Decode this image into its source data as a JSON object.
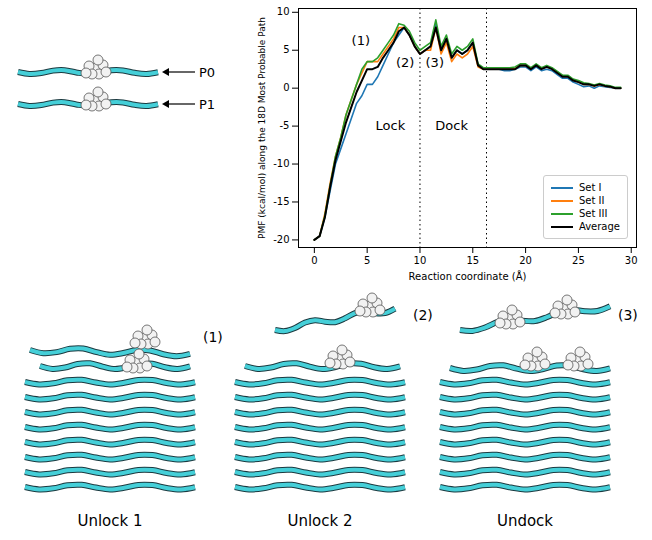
{
  "chart_data": {
    "type": "line",
    "x_label": "Reaction coordinate (Å)",
    "y_label": "PMF (kcal/mol) along the 18D Most Probable Path",
    "xlim": [
      -1.5,
      30.5
    ],
    "ylim": [
      -21,
      10.5
    ],
    "xticks": [
      0,
      5,
      10,
      15,
      20,
      25,
      30
    ],
    "yticks": [
      -20,
      -15,
      -10,
      -5,
      0,
      5,
      10
    ],
    "legend": "lower right",
    "vlines": [
      10,
      16.3
    ],
    "annotations": [
      {
        "text": "(1)",
        "x": 4.4,
        "y": 6.2
      },
      {
        "text": "(2)",
        "x": 8.6,
        "y": 3.3
      },
      {
        "text": "(3)",
        "x": 11.4,
        "y": 3.3
      },
      {
        "text": "Lock",
        "x": 7.2,
        "y": -5
      },
      {
        "text": "Dock",
        "x": 13,
        "y": -5
      }
    ],
    "x": [
      0,
      0.5,
      1,
      1.5,
      2,
      2.5,
      3,
      3.5,
      4,
      4.5,
      5,
      5.5,
      6,
      6.5,
      7,
      7.5,
      8,
      8.5,
      9,
      9.5,
      10,
      10.5,
      11,
      11.5,
      12,
      12.5,
      13,
      13.5,
      14,
      14.5,
      15,
      15.5,
      16,
      16.5,
      17,
      17.5,
      18,
      18.5,
      19,
      19.5,
      20,
      20.5,
      21,
      21.5,
      22,
      22.5,
      23,
      23.5,
      24,
      24.5,
      25,
      25.5,
      26,
      26.5,
      27,
      27.5,
      28,
      28.5,
      29
    ],
    "series": [
      {
        "name": "Set I",
        "color": "#1f77b4",
        "values": [
          -20,
          -19.5,
          -17,
          -13.5,
          -10,
          -8,
          -6,
          -4,
          -2,
          -1,
          0.5,
          0.5,
          1.5,
          3,
          4.5,
          6,
          7,
          8,
          7,
          5.5,
          4.5,
          5,
          5.5,
          8.5,
          5,
          6.5,
          4,
          5,
          4.5,
          5,
          6,
          3,
          2.5,
          2.5,
          2.5,
          2.5,
          2.3,
          2.3,
          2.5,
          2.8,
          2.8,
          2.3,
          2.8,
          2.3,
          2.5,
          2.3,
          1.8,
          1.3,
          1.3,
          0.8,
          0.5,
          0.2,
          0.3,
          0,
          0.3,
          0.2,
          0.1,
          0,
          0
        ]
      },
      {
        "name": "Set II",
        "color": "#ff7f0e",
        "values": [
          -20,
          -19.5,
          -16.5,
          -12.5,
          -9,
          -6.5,
          -3.5,
          -1.5,
          0.5,
          2,
          3.5,
          3.5,
          3.5,
          4.5,
          5.5,
          6.5,
          8,
          8,
          7,
          5.5,
          4.5,
          5,
          5,
          8,
          4.5,
          6,
          3.5,
          4.5,
          4,
          4.5,
          5.5,
          2.8,
          2.5,
          2.5,
          2.5,
          2.5,
          2.5,
          2.5,
          2.6,
          3,
          3,
          2.6,
          3,
          2.6,
          2.8,
          2.6,
          2.1,
          1.6,
          1.6,
          1.1,
          0.8,
          0.5,
          0.5,
          0.3,
          0.5,
          0.3,
          0.2,
          0,
          0
        ]
      },
      {
        "name": "Set III",
        "color": "#2ca02c",
        "values": [
          -20,
          -19.5,
          -16.8,
          -12.8,
          -9,
          -6.5,
          -3.5,
          -1.5,
          0.5,
          2.5,
          3.5,
          3.5,
          4,
          5,
          6,
          7,
          8.5,
          8.3,
          7.5,
          6,
          5,
          5.5,
          6,
          9,
          5.5,
          7,
          4.5,
          5.5,
          5,
          5.5,
          6.5,
          3.2,
          2.7,
          2.7,
          2.7,
          2.7,
          2.7,
          2.7,
          2.8,
          3.2,
          3.2,
          2.7,
          3.2,
          2.7,
          3,
          2.7,
          2.2,
          1.7,
          1.7,
          1.2,
          1,
          0.7,
          0.6,
          0.4,
          0.6,
          0.4,
          0.3,
          0.1,
          0.1
        ]
      },
      {
        "name": "Average",
        "color": "#000000",
        "values": [
          -20,
          -19.5,
          -17,
          -13,
          -9.5,
          -7,
          -4.5,
          -2.5,
          -0.5,
          1,
          2.5,
          2.5,
          2.8,
          4,
          5,
          6,
          7.5,
          8,
          7,
          5.5,
          4.5,
          5,
          5.5,
          8,
          5,
          6.5,
          4,
          5,
          4.5,
          5,
          6,
          3,
          2.5,
          2.5,
          2.5,
          2.5,
          2.5,
          2.5,
          2.5,
          3,
          3,
          2.5,
          3,
          2.5,
          2.8,
          2.5,
          2,
          1.5,
          1.5,
          1,
          0.8,
          0.5,
          0.5,
          0.3,
          0.5,
          0.3,
          0.2,
          0,
          0
        ]
      }
    ]
  },
  "diagram": {
    "peptides": [
      "P0",
      "P1"
    ],
    "snapshots": [
      {
        "marker": "(1)",
        "label": "Unlock 1"
      },
      {
        "marker": "(2)",
        "label": "Unlock 2"
      },
      {
        "marker": "(3)",
        "label": "Undock"
      }
    ]
  }
}
